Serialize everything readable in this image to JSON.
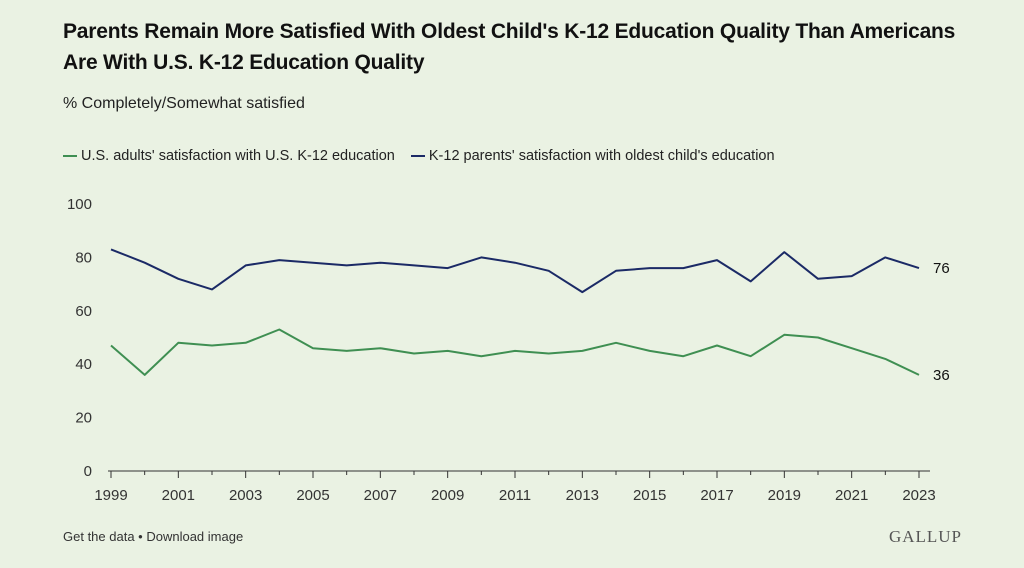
{
  "header": {
    "title": "Parents Remain More Satisfied With Oldest Child's K-12 Education Quality Than Americans Are With U.S. K-12 Education Quality",
    "subtitle": "% Completely/Somewhat satisfied"
  },
  "footer": {
    "get_data": "Get the data",
    "separator": " • ",
    "download": "Download image",
    "brand": "GALLUP"
  },
  "chart_data": {
    "type": "line",
    "title": "Parents Remain More Satisfied With Oldest Child's K-12 Education Quality Than Americans Are With U.S. K-12 Education Quality",
    "subtitle": "% Completely/Somewhat satisfied",
    "xlabel": "",
    "ylabel": "",
    "x": [
      1999,
      2000,
      2001,
      2002,
      2003,
      2004,
      2005,
      2006,
      2007,
      2008,
      2009,
      2010,
      2011,
      2012,
      2013,
      2014,
      2015,
      2016,
      2017,
      2018,
      2019,
      2020,
      2021,
      2022,
      2023
    ],
    "x_ticks": [
      "1999",
      "2001",
      "2003",
      "2005",
      "2007",
      "2009",
      "2011",
      "2013",
      "2015",
      "2017",
      "2019",
      "2021",
      "2023"
    ],
    "y_ticks": [
      "0",
      "20",
      "40",
      "60",
      "80",
      "100"
    ],
    "ylim": [
      0,
      100
    ],
    "xlim": [
      1999,
      2023
    ],
    "grid": false,
    "legend": "top-left",
    "series": [
      {
        "name": "U.S. adults' satisfaction with U.S. K-12 education",
        "color": "#3f8f52",
        "values": [
          47,
          36,
          48,
          47,
          48,
          53,
          46,
          45,
          46,
          44,
          45,
          43,
          45,
          44,
          45,
          48,
          45,
          43,
          47,
          43,
          51,
          50,
          46,
          42,
          36
        ],
        "end_label": "36"
      },
      {
        "name": "K-12 parents' satisfaction with oldest child's education",
        "color": "#1b2a66",
        "values": [
          83,
          78,
          72,
          68,
          77,
          79,
          78,
          77,
          78,
          77,
          76,
          80,
          78,
          75,
          67,
          75,
          76,
          76,
          79,
          71,
          82,
          72,
          73,
          80,
          76
        ],
        "end_label": "76"
      }
    ]
  }
}
